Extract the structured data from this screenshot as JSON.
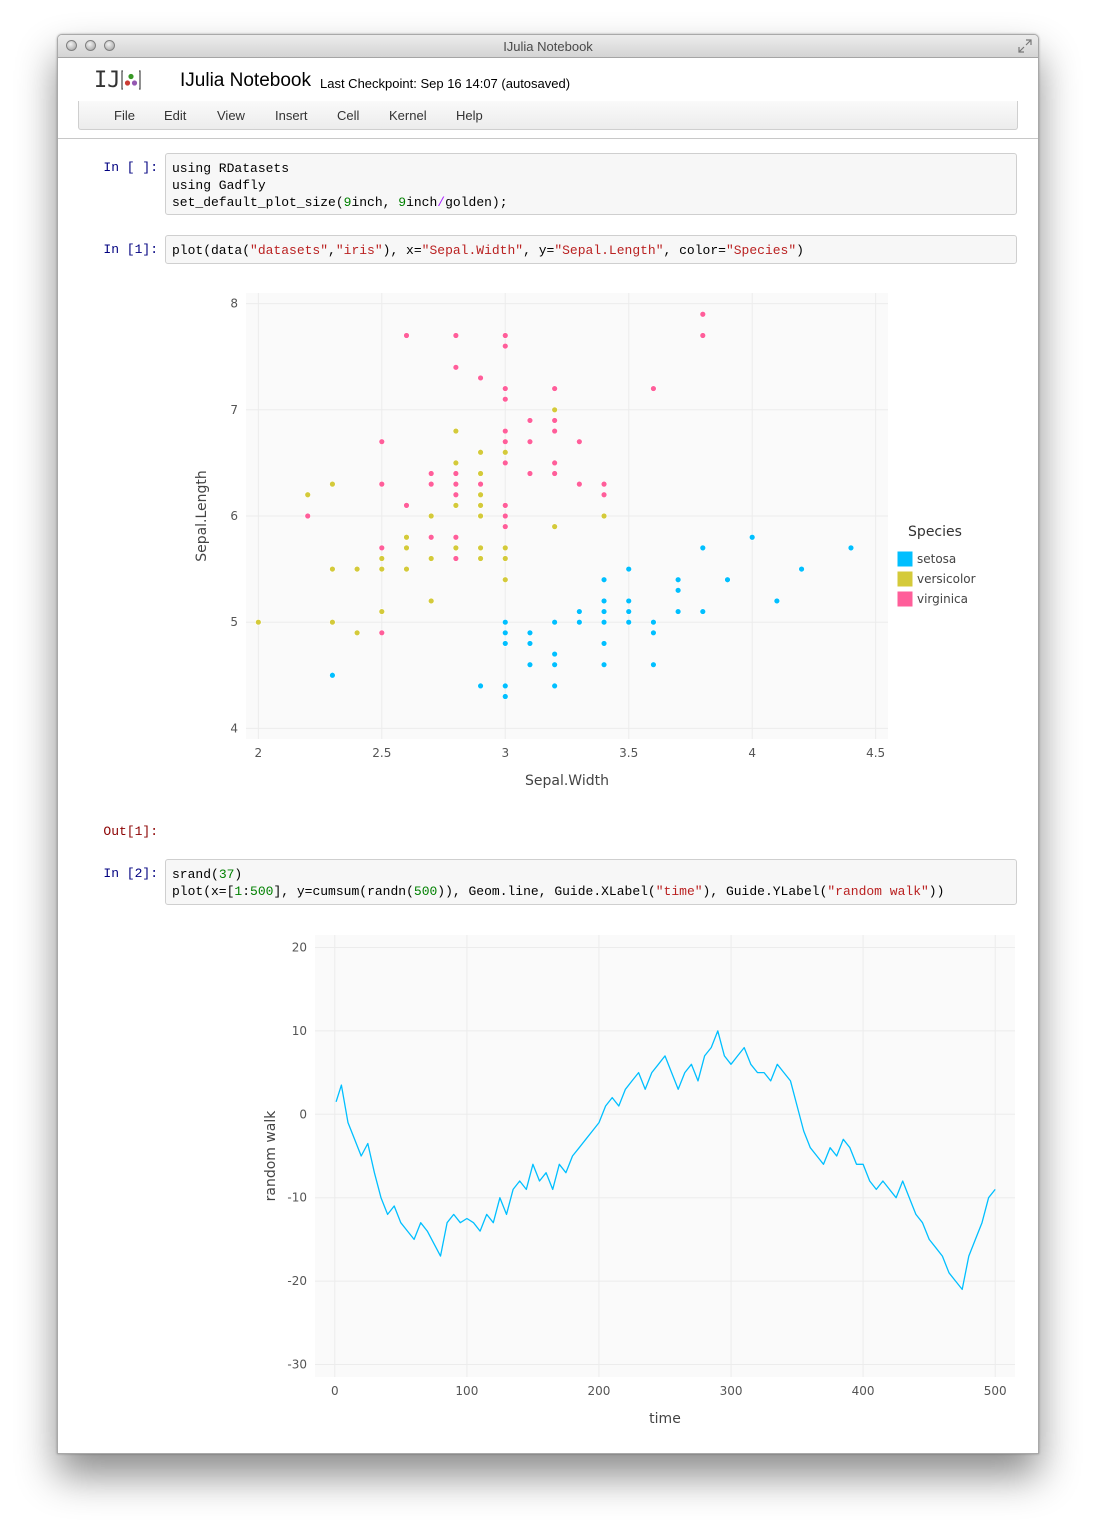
{
  "window": {
    "title": "IJulia Notebook"
  },
  "header": {
    "logo_text": "IJ",
    "notebook_name": "IJulia Notebook",
    "checkpoint": "Last Checkpoint: Sep 16 14:07 (autosaved)"
  },
  "menu": [
    "File",
    "Edit",
    "View",
    "Insert",
    "Cell",
    "Kernel",
    "Help"
  ],
  "cells": {
    "c0": {
      "prompt": "In [ ]:",
      "lines": [
        [
          {
            "t": "using RDatasets",
            "c": ""
          }
        ],
        [
          {
            "t": "using Gadfly",
            "c": ""
          }
        ],
        [
          {
            "t": "set_default_plot_size(",
            "c": ""
          },
          {
            "t": "9",
            "c": "num"
          },
          {
            "t": "inch, ",
            "c": ""
          },
          {
            "t": "9",
            "c": "num"
          },
          {
            "t": "inch",
            "c": ""
          },
          {
            "t": "/",
            "c": "op"
          },
          {
            "t": "golden);",
            "c": ""
          }
        ]
      ]
    },
    "c1": {
      "prompt": "In [1]:",
      "out_prompt": "Out[1]:",
      "lines": [
        [
          {
            "t": "plot(data(",
            "c": ""
          },
          {
            "t": "\"datasets\"",
            "c": "str"
          },
          {
            "t": ",",
            "c": ""
          },
          {
            "t": "\"iris\"",
            "c": "str"
          },
          {
            "t": "), x=",
            "c": ""
          },
          {
            "t": "\"Sepal.Width\"",
            "c": "str"
          },
          {
            "t": ", y=",
            "c": ""
          },
          {
            "t": "\"Sepal.Length\"",
            "c": "str"
          },
          {
            "t": ", color=",
            "c": ""
          },
          {
            "t": "\"Species\"",
            "c": "str"
          },
          {
            "t": ")",
            "c": ""
          }
        ]
      ]
    },
    "c2": {
      "prompt": "In [2]:",
      "lines": [
        [
          {
            "t": "srand(",
            "c": ""
          },
          {
            "t": "37",
            "c": "num"
          },
          {
            "t": ")",
            "c": ""
          }
        ],
        [
          {
            "t": "plot(x=[",
            "c": ""
          },
          {
            "t": "1",
            "c": "num"
          },
          {
            "t": ":",
            "c": ""
          },
          {
            "t": "500",
            "c": "num"
          },
          {
            "t": "], y=cumsum(randn(",
            "c": ""
          },
          {
            "t": "500",
            "c": "num"
          },
          {
            "t": ")), Geom.line, Guide.XLabel(",
            "c": ""
          },
          {
            "t": "\"time\"",
            "c": "str"
          },
          {
            "t": "), Guide.YLabel(",
            "c": ""
          },
          {
            "t": "\"random walk\"",
            "c": "str"
          },
          {
            "t": "))",
            "c": ""
          }
        ]
      ]
    }
  },
  "chart_data": [
    {
      "type": "scatter",
      "title": "",
      "xlabel": "Sepal.Width",
      "ylabel": "Sepal.Length",
      "xlim": [
        1.95,
        4.55
      ],
      "ylim": [
        3.9,
        8.1
      ],
      "xticks": [
        2,
        2.5,
        3,
        3.5,
        4,
        4.5
      ],
      "xtick_labels": [
        "2",
        "2.5",
        "3",
        "3.5",
        "4",
        "4.5"
      ],
      "yticks": [
        4,
        5,
        6,
        7,
        8
      ],
      "ytick_labels": [
        "4",
        "5",
        "6",
        "7",
        "8"
      ],
      "grid": true,
      "legend": {
        "title": "Species",
        "position": "right"
      },
      "series": [
        {
          "name": "setosa",
          "color": "#00bfff",
          "points": [
            [
              3.5,
              5.1
            ],
            [
              3.0,
              4.9
            ],
            [
              3.2,
              4.7
            ],
            [
              3.1,
              4.6
            ],
            [
              3.6,
              5.0
            ],
            [
              3.9,
              5.4
            ],
            [
              3.4,
              4.6
            ],
            [
              3.4,
              5.0
            ],
            [
              2.9,
              4.4
            ],
            [
              3.1,
              4.9
            ],
            [
              3.7,
              5.4
            ],
            [
              3.4,
              4.8
            ],
            [
              3.0,
              4.8
            ],
            [
              3.0,
              4.3
            ],
            [
              4.0,
              5.8
            ],
            [
              4.4,
              5.7
            ],
            [
              3.9,
              5.4
            ],
            [
              3.5,
              5.1
            ],
            [
              3.8,
              5.7
            ],
            [
              3.8,
              5.1
            ],
            [
              3.4,
              5.4
            ],
            [
              3.7,
              5.1
            ],
            [
              3.6,
              4.6
            ],
            [
              3.3,
              5.1
            ],
            [
              3.4,
              4.8
            ],
            [
              3.0,
              5.0
            ],
            [
              3.4,
              5.0
            ],
            [
              3.5,
              5.2
            ],
            [
              3.4,
              5.2
            ],
            [
              3.2,
              4.7
            ],
            [
              3.1,
              4.8
            ],
            [
              3.4,
              5.4
            ],
            [
              4.1,
              5.2
            ],
            [
              4.2,
              5.5
            ],
            [
              3.1,
              4.9
            ],
            [
              3.2,
              5.0
            ],
            [
              3.5,
              5.5
            ],
            [
              3.6,
              4.9
            ],
            [
              3.0,
              4.4
            ],
            [
              3.4,
              5.1
            ],
            [
              3.5,
              5.0
            ],
            [
              2.3,
              4.5
            ],
            [
              3.2,
              4.4
            ],
            [
              3.5,
              5.0
            ],
            [
              3.8,
              5.1
            ],
            [
              3.0,
              4.8
            ],
            [
              3.8,
              5.1
            ],
            [
              3.2,
              4.6
            ],
            [
              3.7,
              5.3
            ],
            [
              3.3,
              5.0
            ]
          ]
        },
        {
          "name": "versicolor",
          "color": "#d4ca3a",
          "points": [
            [
              3.2,
              7.0
            ],
            [
              3.2,
              6.4
            ],
            [
              3.1,
              6.9
            ],
            [
              2.3,
              5.5
            ],
            [
              2.8,
              6.5
            ],
            [
              2.8,
              5.7
            ],
            [
              3.3,
              6.3
            ],
            [
              2.4,
              4.9
            ],
            [
              2.9,
              6.6
            ],
            [
              2.7,
              5.2
            ],
            [
              2.0,
              5.0
            ],
            [
              3.0,
              5.9
            ],
            [
              2.2,
              6.0
            ],
            [
              2.9,
              6.1
            ],
            [
              2.9,
              5.6
            ],
            [
              3.1,
              6.7
            ],
            [
              3.0,
              5.6
            ],
            [
              2.7,
              5.8
            ],
            [
              2.2,
              6.2
            ],
            [
              2.5,
              5.6
            ],
            [
              3.2,
              5.9
            ],
            [
              2.8,
              6.1
            ],
            [
              2.5,
              6.3
            ],
            [
              2.8,
              6.1
            ],
            [
              2.9,
              6.4
            ],
            [
              3.0,
              6.6
            ],
            [
              2.8,
              6.8
            ],
            [
              3.0,
              6.7
            ],
            [
              2.9,
              6.0
            ],
            [
              2.6,
              5.7
            ],
            [
              2.4,
              5.5
            ],
            [
              2.4,
              5.5
            ],
            [
              2.7,
              5.8
            ],
            [
              2.7,
              6.0
            ],
            [
              3.0,
              5.4
            ],
            [
              3.4,
              6.0
            ],
            [
              3.1,
              6.7
            ],
            [
              2.3,
              6.3
            ],
            [
              3.0,
              5.6
            ],
            [
              2.5,
              5.5
            ],
            [
              2.6,
              5.5
            ],
            [
              3.0,
              6.1
            ],
            [
              2.6,
              5.8
            ],
            [
              2.3,
              5.0
            ],
            [
              2.7,
              5.6
            ],
            [
              3.0,
              5.7
            ],
            [
              2.9,
              5.7
            ],
            [
              2.9,
              6.2
            ],
            [
              2.5,
              5.1
            ],
            [
              2.8,
              5.7
            ]
          ]
        },
        {
          "name": "virginica",
          "color": "#ff5e9a",
          "points": [
            [
              3.3,
              6.3
            ],
            [
              2.7,
              5.8
            ],
            [
              3.0,
              7.1
            ],
            [
              2.9,
              6.3
            ],
            [
              3.0,
              6.5
            ],
            [
              3.0,
              7.6
            ],
            [
              2.5,
              4.9
            ],
            [
              2.9,
              7.3
            ],
            [
              2.5,
              6.7
            ],
            [
              3.6,
              7.2
            ],
            [
              3.2,
              6.5
            ],
            [
              2.7,
              6.4
            ],
            [
              3.0,
              6.8
            ],
            [
              2.5,
              5.7
            ],
            [
              2.8,
              5.8
            ],
            [
              3.2,
              6.4
            ],
            [
              3.0,
              6.5
            ],
            [
              3.8,
              7.7
            ],
            [
              2.6,
              7.7
            ],
            [
              2.2,
              6.0
            ],
            [
              3.2,
              6.9
            ],
            [
              2.8,
              5.6
            ],
            [
              2.8,
              7.7
            ],
            [
              2.7,
              6.3
            ],
            [
              3.3,
              6.7
            ],
            [
              3.2,
              7.2
            ],
            [
              2.8,
              6.2
            ],
            [
              3.0,
              6.1
            ],
            [
              2.8,
              6.4
            ],
            [
              3.0,
              7.2
            ],
            [
              2.8,
              7.4
            ],
            [
              3.8,
              7.9
            ],
            [
              2.8,
              6.4
            ],
            [
              2.8,
              6.3
            ],
            [
              2.6,
              6.1
            ],
            [
              3.0,
              7.7
            ],
            [
              3.4,
              6.3
            ],
            [
              3.1,
              6.4
            ],
            [
              3.0,
              6.0
            ],
            [
              3.1,
              6.9
            ],
            [
              3.1,
              6.7
            ],
            [
              3.1,
              6.9
            ],
            [
              2.7,
              5.8
            ],
            [
              3.2,
              6.8
            ],
            [
              3.3,
              6.7
            ],
            [
              3.0,
              6.7
            ],
            [
              2.5,
              6.3
            ],
            [
              3.0,
              6.5
            ],
            [
              3.4,
              6.2
            ],
            [
              3.0,
              5.9
            ]
          ]
        }
      ]
    },
    {
      "type": "line",
      "title": "",
      "xlabel": "time",
      "ylabel": "random walk",
      "xlim": [
        -15,
        515
      ],
      "ylim": [
        -31.5,
        21.5
      ],
      "xticks": [
        0,
        100,
        200,
        300,
        400,
        500
      ],
      "xtick_labels": [
        "0",
        "100",
        "200",
        "300",
        "400",
        "500"
      ],
      "yticks": [
        -30,
        -20,
        -10,
        0,
        10,
        20
      ],
      "ytick_labels": [
        "-30",
        "-20",
        "-10",
        "0",
        "10",
        "20"
      ],
      "grid": true,
      "series": [
        {
          "name": "",
          "color": "#00bfff",
          "x": [
            1,
            5,
            10,
            15,
            20,
            25,
            30,
            35,
            40,
            45,
            50,
            55,
            60,
            65,
            70,
            75,
            80,
            85,
            90,
            95,
            100,
            105,
            110,
            115,
            120,
            125,
            130,
            135,
            140,
            145,
            150,
            155,
            160,
            165,
            170,
            175,
            180,
            185,
            190,
            195,
            200,
            205,
            210,
            215,
            220,
            225,
            230,
            235,
            240,
            245,
            250,
            255,
            260,
            265,
            270,
            275,
            280,
            285,
            290,
            295,
            300,
            305,
            310,
            315,
            320,
            325,
            330,
            335,
            340,
            345,
            350,
            355,
            360,
            365,
            370,
            375,
            380,
            385,
            390,
            395,
            400,
            405,
            410,
            415,
            420,
            425,
            430,
            435,
            440,
            445,
            450,
            455,
            460,
            465,
            470,
            475,
            480,
            485,
            490,
            495,
            500
          ],
          "y": [
            1.5,
            3.5,
            -1,
            -3,
            -5,
            -3.5,
            -7,
            -10,
            -12,
            -11,
            -13,
            -14,
            -15,
            -13,
            -14,
            -15.5,
            -17,
            -13,
            -12,
            -13,
            -12.5,
            -13,
            -14,
            -12,
            -13,
            -10,
            -12,
            -9,
            -8,
            -9,
            -6,
            -8,
            -7,
            -9,
            -6,
            -7,
            -5,
            -4,
            -3,
            -2,
            -1,
            1,
            2,
            1,
            3,
            4,
            5,
            3,
            5,
            6,
            7,
            5,
            3,
            5,
            6,
            4,
            7,
            8,
            10,
            7,
            6,
            7,
            8,
            6,
            5,
            5,
            4,
            6,
            5,
            4,
            1,
            -2,
            -4,
            -5,
            -6,
            -4,
            -5,
            -3,
            -4,
            -6,
            -6,
            -8,
            -9,
            -8,
            -9,
            -10,
            -8,
            -10,
            -12,
            -13,
            -15,
            -16,
            -17,
            -19,
            -20,
            -21,
            -17,
            -15,
            -13,
            -10,
            -9
          ]
        }
      ]
    }
  ]
}
